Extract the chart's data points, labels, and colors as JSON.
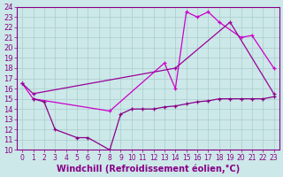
{
  "background_color": "#cce8e8",
  "grid_color": "#aacccc",
  "line_bright": {
    "x": [
      0,
      1,
      8,
      13,
      14,
      15,
      16,
      17,
      18,
      20,
      21,
      23
    ],
    "y": [
      16.5,
      15.0,
      13.8,
      18.5,
      16.0,
      23.5,
      23.0,
      23.5,
      22.5,
      21.0,
      21.2,
      18.0
    ],
    "color": "#cc00cc"
  },
  "line_mid": {
    "x": [
      0,
      1,
      14,
      19,
      23
    ],
    "y": [
      16.5,
      15.5,
      18.0,
      22.5,
      15.5
    ],
    "color": "#990099"
  },
  "line_low": {
    "x": [
      1,
      2,
      3,
      5,
      6,
      8,
      9,
      10,
      11,
      12,
      13,
      14,
      15,
      16,
      17,
      18,
      19,
      20,
      21,
      22,
      23
    ],
    "y": [
      15.0,
      14.7,
      12.0,
      11.2,
      11.2,
      10.0,
      13.5,
      14.0,
      14.0,
      14.0,
      14.2,
      14.3,
      14.5,
      14.7,
      14.8,
      15.0,
      15.0,
      15.0,
      15.0,
      15.0,
      15.2
    ],
    "color": "#880088"
  },
  "xlabel": "Windchill (Refroidissement éolien,°C)",
  "xlim": [
    -0.5,
    23.5
  ],
  "ylim": [
    10,
    24
  ],
  "yticks": [
    10,
    11,
    12,
    13,
    14,
    15,
    16,
    17,
    18,
    19,
    20,
    21,
    22,
    23,
    24
  ],
  "xticks": [
    0,
    1,
    2,
    3,
    4,
    5,
    6,
    7,
    8,
    9,
    10,
    11,
    12,
    13,
    14,
    15,
    16,
    17,
    18,
    19,
    20,
    21,
    22,
    23
  ],
  "tick_color": "#880088",
  "axis_color": "#880088",
  "xlabel_color": "#880088",
  "xlabel_fontsize": 7,
  "tick_fontsize": 6
}
